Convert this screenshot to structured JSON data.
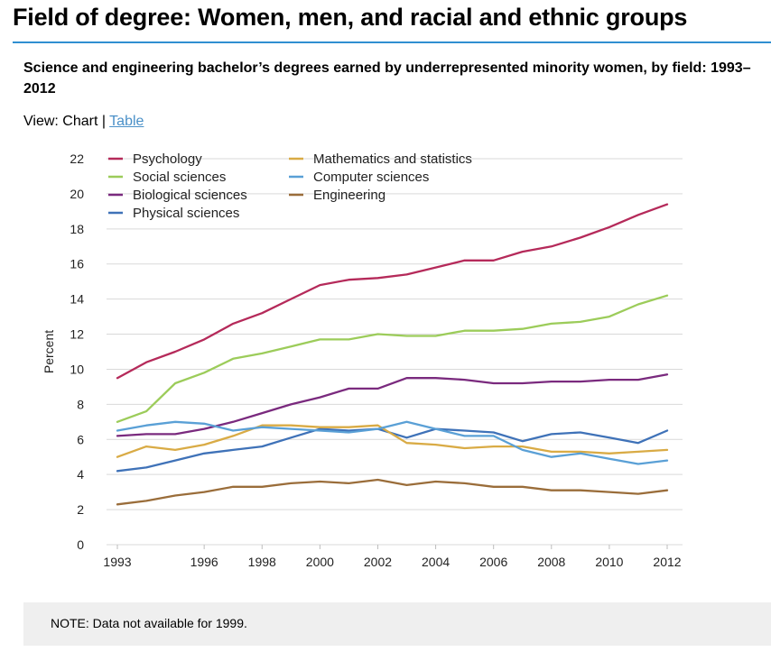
{
  "header": {
    "title": "Field of degree: Women, men, and racial and ethnic groups",
    "subtitle": "Science and engineering bachelor’s degrees earned by underrepresented minority women, by field: 1993–2012"
  },
  "view": {
    "prefix": "View: Chart",
    "separator": "|",
    "table_link": "Table"
  },
  "note": "NOTE: Data not available for 1999.",
  "colors": {
    "rule": "#2f8fd1",
    "link": "#4a90c8",
    "grid": "#d9d9d9",
    "note_bg": "#efefef"
  },
  "chart_data": {
    "type": "line",
    "title": "",
    "xlabel": "",
    "ylabel": "Percent",
    "ylim": [
      0,
      22
    ],
    "yticks": [
      0,
      2,
      4,
      6,
      8,
      10,
      12,
      14,
      16,
      18,
      20,
      22
    ],
    "xticks": [
      1993,
      1996,
      1998,
      2000,
      2002,
      2004,
      2006,
      2008,
      2010,
      2012
    ],
    "x": [
      1993,
      1994,
      1995,
      1996,
      1997,
      1998,
      1999,
      2000,
      2001,
      2002,
      2003,
      2004,
      2005,
      2006,
      2007,
      2008,
      2009,
      2010,
      2011,
      2012
    ],
    "grid": true,
    "legend_position": "top-left",
    "series": [
      {
        "name": "Psychology",
        "color": "#b52a5a",
        "values": [
          9.5,
          10.4,
          11.0,
          11.7,
          12.6,
          13.2,
          14.0,
          14.8,
          15.1,
          15.2,
          15.4,
          15.8,
          16.2,
          16.2,
          16.7,
          17.0,
          17.5,
          18.1,
          18.8,
          19.4
        ]
      },
      {
        "name": "Social sciences",
        "color": "#9ccc5a",
        "values": [
          7.0,
          7.6,
          9.2,
          9.8,
          10.6,
          10.9,
          11.3,
          11.7,
          11.7,
          12.0,
          11.9,
          11.9,
          12.2,
          12.2,
          12.3,
          12.6,
          12.7,
          13.0,
          13.7,
          14.2
        ]
      },
      {
        "name": "Biological sciences",
        "color": "#7a2a7e",
        "values": [
          6.2,
          6.3,
          6.3,
          6.6,
          7.0,
          7.5,
          8.0,
          8.4,
          8.9,
          8.9,
          9.5,
          9.5,
          9.4,
          9.2,
          9.2,
          9.3,
          9.3,
          9.4,
          9.4,
          9.7
        ]
      },
      {
        "name": "Physical sciences",
        "color": "#3f72b8",
        "values": [
          4.2,
          4.4,
          4.8,
          5.2,
          5.4,
          5.6,
          6.1,
          6.6,
          6.5,
          6.6,
          6.1,
          6.6,
          6.5,
          6.4,
          5.9,
          6.3,
          6.4,
          6.1,
          5.8,
          6.5
        ]
      },
      {
        "name": "Mathematics and statistics",
        "color": "#d9ab45",
        "values": [
          5.0,
          5.6,
          5.4,
          5.7,
          6.2,
          6.8,
          6.8,
          6.7,
          6.7,
          6.8,
          5.8,
          5.7,
          5.5,
          5.6,
          5.6,
          5.3,
          5.3,
          5.2,
          5.3,
          5.4
        ]
      },
      {
        "name": "Computer sciences",
        "color": "#5aa0d6",
        "values": [
          6.5,
          6.8,
          7.0,
          6.9,
          6.5,
          6.7,
          6.6,
          6.5,
          6.4,
          6.6,
          7.0,
          6.6,
          6.2,
          6.2,
          5.4,
          5.0,
          5.2,
          4.9,
          4.6,
          4.8
        ]
      },
      {
        "name": "Engineering",
        "color": "#9a6d3a",
        "values": [
          2.3,
          2.5,
          2.8,
          3.0,
          3.3,
          3.3,
          3.5,
          3.6,
          3.5,
          3.7,
          3.4,
          3.6,
          3.5,
          3.3,
          3.3,
          3.1,
          3.1,
          3.0,
          2.9,
          3.1
        ]
      }
    ]
  }
}
